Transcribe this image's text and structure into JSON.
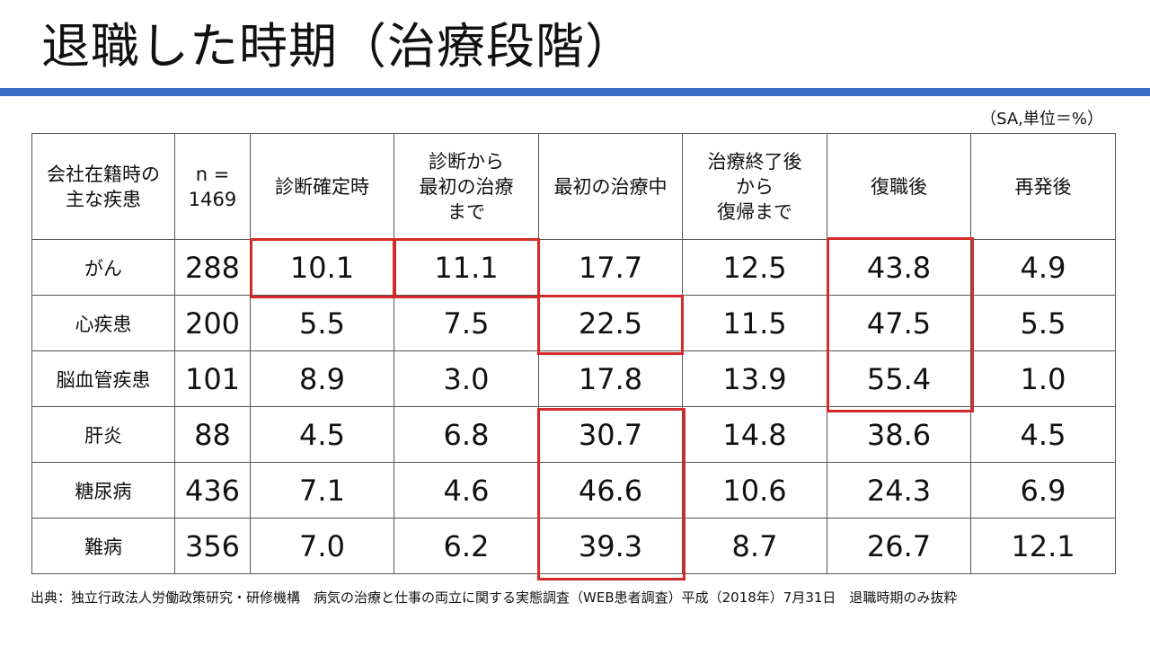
{
  "title": "退職した時期（治療段階）",
  "unit_note": "（SA,単位＝%）",
  "table": {
    "headers": [
      [
        "会社在籍時の",
        "主な疾患"
      ],
      [
        "n =",
        "1469"
      ],
      [
        "診断確定時"
      ],
      [
        "診断から",
        "最初の治療",
        "まで"
      ],
      [
        "最初の治療中"
      ],
      [
        "治療終了後",
        "から",
        "復帰まで"
      ],
      [
        "復職後"
      ],
      [
        "再発後"
      ]
    ],
    "rows": [
      [
        "がん",
        "288",
        "10.1",
        "11.1",
        "17.7",
        "12.5",
        "43.8",
        "4.9"
      ],
      [
        "心疾患",
        "200",
        "5.5",
        "7.5",
        "22.5",
        "11.5",
        "47.5",
        "5.5"
      ],
      [
        "脳血管疾患",
        "101",
        "8.9",
        "3.0",
        "17.8",
        "13.9",
        "55.4",
        "1.0"
      ],
      [
        "肝炎",
        "88",
        "4.5",
        "6.8",
        "30.7",
        "14.8",
        "38.6",
        "4.5"
      ],
      [
        "糖尿病",
        "436",
        "7.1",
        "4.6",
        "46.6",
        "10.6",
        "24.3",
        "6.9"
      ],
      [
        "難病",
        "356",
        "7.0",
        "6.2",
        "39.3",
        "8.7",
        "26.7",
        "12.1"
      ]
    ]
  },
  "highlight_color": "#d42a2a",
  "accent_color": "#3a6cc5",
  "source": "出典：独立行政法人労働政策研究・研修機構　病気の治療と仕事の両立に関する実態調査（WEB患者調査）平成（2018年）7月31日　退職時期のみ抜粋"
}
